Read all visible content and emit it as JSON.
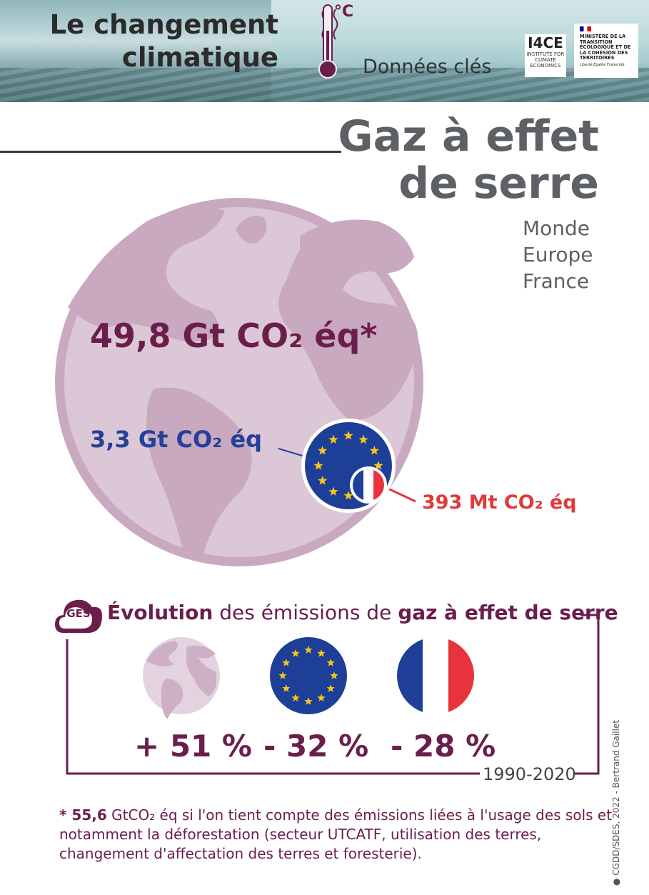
{
  "banner": {
    "title_line1": "Le changement",
    "title_line2": "climatique",
    "degree_unit": "°C",
    "subtitle": "Données clés",
    "logo_i4ce_name": "I4CE",
    "logo_i4ce_tagline": "INSTITUTE FOR CLIMATE ECONOMICS",
    "logo_ministry_text": "MINISTÈRE DE LA TRANSITION ÉCOLOGIQUE ET DE LA COHÉSION DES TERRITOIRES",
    "logo_ministry_motto": "Liberté Égalité Fraternité"
  },
  "heading": {
    "line1": "Gaz à effet",
    "line2": "de serre"
  },
  "scopes": [
    "Monde",
    "Europe",
    "France"
  ],
  "emissions": {
    "world": "49,8 Gt CO₂ éq*",
    "europe": "3,3 Gt CO₂ éq",
    "france": "393 Mt CO₂ éq"
  },
  "evolution": {
    "badge": "GES",
    "title_part1": "Évolution",
    "title_part2": " des émissions de ",
    "title_part3": "gaz à effet de serre",
    "world_change": "+ 51 %",
    "europe_change": "- 32 %",
    "france_change": "- 28 %",
    "period": "1990-2020"
  },
  "footnote": {
    "value": "* 55,6",
    "text": " GtCO₂ éq si l'on tient compte des émissions liées à l'usage des sols et notamment la déforestation (secteur UTCATF, utilisation des terres, changement d'affectation des terres et foresterie)."
  },
  "credit": "● CGDD/SDES, 2022 - Bertrand Gaillet",
  "colors": {
    "plum": "#6b1e4c",
    "globe": "#dcc7d6",
    "globe_land": "#c9a9c0",
    "eu_blue": "#1e3f97",
    "eu_star": "#f5c518",
    "fr_blue": "#1f3f98",
    "fr_red": "#e8323c",
    "grey_title": "#5d6064"
  }
}
